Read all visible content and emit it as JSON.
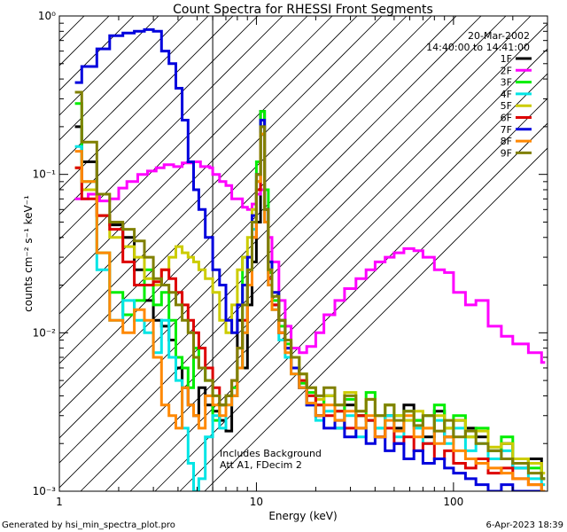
{
  "chart_data": {
    "type": "line",
    "title": "Count Spectra for RHESSI Front Segments",
    "xlabel": "Energy (keV)",
    "ylabel": "counts cm⁻² s⁻¹ keV⁻¹",
    "xscale": "log",
    "yscale": "log",
    "xlim": [
      1,
      300
    ],
    "ylim": [
      0.001,
      1.0
    ],
    "x_ticks": [
      {
        "value": 1,
        "label": "1"
      },
      {
        "value": 10,
        "label": "10"
      },
      {
        "value": 100,
        "label": "100"
      }
    ],
    "y_ticks": [
      {
        "value": 0.001,
        "label": "10⁻³"
      },
      {
        "value": 0.01,
        "label": "10⁻²"
      },
      {
        "value": 0.1,
        "label": "10⁻¹"
      },
      {
        "value": 1,
        "label": "10⁰"
      }
    ],
    "date_label": "20-Mar-2002",
    "time_range": "14:40:00 to 14:41:00",
    "annotation_lines": [
      "Includes Background",
      "Att A1, FDecim 2"
    ],
    "hatched_region_upper_kev": 6,
    "grid": false,
    "legend_position": "top-right",
    "series": [
      {
        "name": "1F",
        "color": "#000000",
        "x": [
          1.2,
          1.3,
          1.55,
          1.8,
          2.1,
          2.4,
          2.7,
          3.0,
          3.3,
          3.6,
          3.9,
          4.2,
          4.5,
          4.8,
          5.1,
          5.5,
          6.0,
          6.5,
          7.0,
          7.5,
          8.0,
          8.5,
          9.0,
          9.5,
          10.0,
          10.5,
          11.0,
          11.5,
          12.0,
          13.0,
          14.0,
          15.0,
          16.5,
          18.0,
          20.0,
          22.0,
          25.0,
          28.0,
          32.0,
          36.0,
          40.0,
          45.0,
          50.0,
          56.0,
          63.0,
          70.0,
          80.0,
          90.0,
          100.0,
          115.0,
          130.0,
          150.0,
          175.0,
          200.0,
          240.0,
          280.0
        ],
        "values": [
          0.2,
          0.12,
          0.055,
          0.048,
          0.04,
          0.025,
          0.016,
          0.012,
          0.011,
          0.009,
          0.006,
          0.0045,
          0.0035,
          0.003,
          0.0045,
          0.0035,
          0.0032,
          0.0028,
          0.0024,
          0.004,
          0.012,
          0.006,
          0.015,
          0.028,
          0.05,
          0.25,
          0.05,
          0.02,
          0.015,
          0.01,
          0.008,
          0.006,
          0.0045,
          0.0035,
          0.003,
          0.004,
          0.0025,
          0.0035,
          0.003,
          0.0028,
          0.0022,
          0.003,
          0.0025,
          0.0035,
          0.0028,
          0.0022,
          0.0032,
          0.0022,
          0.0028,
          0.0025,
          0.0022,
          0.0018,
          0.002,
          0.0014,
          0.0016,
          0.0012
        ]
      },
      {
        "name": "2F",
        "color": "#ff00ff",
        "x": [
          1.2,
          1.4,
          1.6,
          1.8,
          2.0,
          2.2,
          2.5,
          2.8,
          3.1,
          3.4,
          3.8,
          4.2,
          4.7,
          5.2,
          5.8,
          6.0,
          6.5,
          7.0,
          7.5,
          8.0,
          8.5,
          9.0,
          9.5,
          10.0,
          10.5,
          11.0,
          11.5,
          12.0,
          13.0,
          14.0,
          15.0,
          16.5,
          18.0,
          20.0,
          22.0,
          25.0,
          28.0,
          32.0,
          36.0,
          40.0,
          45.0,
          50.0,
          56.0,
          63.0,
          70.0,
          80.0,
          90.0,
          100.0,
          115.0,
          130.0,
          150.0,
          175.0,
          200.0,
          240.0,
          280.0
        ],
        "values": [
          0.07,
          0.075,
          0.068,
          0.07,
          0.082,
          0.09,
          0.1,
          0.105,
          0.11,
          0.115,
          0.112,
          0.118,
          0.12,
          0.112,
          0.11,
          0.1,
          0.09,
          0.085,
          0.07,
          0.07,
          0.062,
          0.06,
          0.065,
          0.075,
          0.08,
          0.06,
          0.04,
          0.028,
          0.016,
          0.011,
          0.008,
          0.0075,
          0.0082,
          0.01,
          0.013,
          0.016,
          0.019,
          0.022,
          0.025,
          0.028,
          0.03,
          0.032,
          0.034,
          0.033,
          0.03,
          0.025,
          0.024,
          0.018,
          0.015,
          0.016,
          0.011,
          0.0095,
          0.0085,
          0.0075,
          0.0065
        ]
      },
      {
        "name": "3F",
        "color": "#00ee00",
        "x": [
          1.2,
          1.3,
          1.55,
          1.8,
          2.1,
          2.4,
          2.7,
          3.0,
          3.3,
          3.6,
          3.9,
          4.2,
          4.5,
          4.8,
          5.1,
          5.5,
          6.0,
          6.5,
          7.0,
          7.5,
          8.0,
          8.5,
          9.0,
          9.5,
          10.0,
          10.5,
          11.0,
          11.5,
          12.0,
          13.0,
          14.0,
          15.0,
          16.5,
          18.0,
          20.0,
          22.0,
          25.0,
          28.0,
          32.0,
          36.0,
          40.0,
          45.0,
          50.0,
          56.0,
          63.0,
          70.0,
          80.0,
          90.0,
          100.0,
          115.0,
          130.0,
          150.0,
          175.0,
          200.0,
          240.0,
          280.0
        ],
        "values": [
          0.28,
          0.09,
          0.032,
          0.018,
          0.013,
          0.016,
          0.025,
          0.015,
          0.018,
          0.012,
          0.007,
          0.006,
          0.0045,
          0.008,
          0.006,
          0.005,
          0.0028,
          0.0035,
          0.004,
          0.0045,
          0.006,
          0.03,
          0.02,
          0.05,
          0.12,
          0.25,
          0.08,
          0.024,
          0.016,
          0.011,
          0.0085,
          0.006,
          0.0048,
          0.0042,
          0.0035,
          0.004,
          0.0032,
          0.0038,
          0.003,
          0.0042,
          0.0025,
          0.0035,
          0.003,
          0.0032,
          0.0028,
          0.003,
          0.0035,
          0.0025,
          0.003,
          0.0022,
          0.0025,
          0.0018,
          0.0022,
          0.0016,
          0.0014,
          0.0012
        ]
      },
      {
        "name": "4F",
        "color": "#00e5e5",
        "x": [
          1.2,
          1.3,
          1.55,
          1.8,
          2.1,
          2.4,
          2.7,
          3.0,
          3.3,
          3.6,
          3.9,
          4.2,
          4.5,
          4.8,
          5.1,
          5.5,
          6.0,
          6.5,
          7.0,
          7.5,
          8.0,
          8.5,
          9.0,
          9.5,
          10.0,
          10.5,
          11.0,
          11.5,
          12.0,
          13.0,
          14.0,
          15.0,
          16.5,
          18.0,
          20.0,
          22.0,
          25.0,
          28.0,
          32.0,
          36.0,
          40.0,
          45.0,
          50.0,
          56.0,
          63.0,
          70.0,
          80.0,
          90.0,
          100.0,
          115.0,
          130.0,
          150.0,
          175.0,
          200.0,
          240.0,
          280.0
        ],
        "values": [
          0.15,
          0.08,
          0.025,
          0.012,
          0.016,
          0.012,
          0.01,
          0.0075,
          0.012,
          0.007,
          0.005,
          0.0025,
          0.0015,
          0.001,
          0.0012,
          0.0022,
          0.003,
          0.0025,
          0.0035,
          0.004,
          0.006,
          0.01,
          0.02,
          0.045,
          0.1,
          0.2,
          0.05,
          0.02,
          0.014,
          0.009,
          0.007,
          0.0055,
          0.0045,
          0.0035,
          0.0028,
          0.0032,
          0.0025,
          0.003,
          0.0022,
          0.0028,
          0.0025,
          0.003,
          0.0022,
          0.0028,
          0.0025,
          0.002,
          0.0028,
          0.002,
          0.0025,
          0.0018,
          0.002,
          0.0016,
          0.0018,
          0.0014,
          0.0012,
          0.0011
        ]
      },
      {
        "name": "5F",
        "color": "#cccc00",
        "x": [
          1.2,
          1.3,
          1.55,
          1.8,
          2.1,
          2.4,
          2.7,
          3.0,
          3.3,
          3.6,
          3.9,
          4.2,
          4.5,
          4.8,
          5.1,
          5.5,
          6.0,
          6.5,
          7.0,
          7.5,
          8.0,
          8.5,
          9.0,
          9.5,
          10.0,
          10.5,
          11.0,
          11.5,
          12.0,
          13.0,
          14.0,
          15.0,
          16.5,
          18.0,
          20.0,
          22.0,
          25.0,
          28.0,
          32.0,
          36.0,
          40.0,
          45.0,
          50.0,
          56.0,
          63.0,
          70.0,
          80.0,
          90.0,
          100.0,
          115.0,
          130.0,
          150.0,
          175.0,
          200.0,
          240.0,
          280.0
        ],
        "values": [
          0.11,
          0.08,
          0.055,
          0.04,
          0.035,
          0.03,
          0.022,
          0.02,
          0.025,
          0.03,
          0.035,
          0.032,
          0.03,
          0.028,
          0.025,
          0.022,
          0.018,
          0.012,
          0.01,
          0.015,
          0.025,
          0.03,
          0.04,
          0.06,
          0.09,
          0.18,
          0.06,
          0.025,
          0.018,
          0.012,
          0.009,
          0.007,
          0.0055,
          0.0045,
          0.0038,
          0.004,
          0.0035,
          0.0042,
          0.0032,
          0.0038,
          0.003,
          0.0035,
          0.003,
          0.0028,
          0.0032,
          0.0025,
          0.003,
          0.0025,
          0.0028,
          0.0022,
          0.0024,
          0.0019,
          0.002,
          0.0016,
          0.0015,
          0.0013
        ]
      },
      {
        "name": "6F",
        "color": "#dd0000",
        "x": [
          1.2,
          1.3,
          1.55,
          1.8,
          2.1,
          2.4,
          2.7,
          3.0,
          3.3,
          3.6,
          3.9,
          4.2,
          4.5,
          4.8,
          5.1,
          5.5,
          6.0,
          6.5,
          7.0,
          7.5,
          8.0,
          8.5,
          9.0,
          9.5,
          10.0,
          10.5,
          11.0,
          11.5,
          12.0,
          13.0,
          14.0,
          15.0,
          16.5,
          18.0,
          20.0,
          22.0,
          25.0,
          28.0,
          32.0,
          36.0,
          40.0,
          45.0,
          50.0,
          56.0,
          63.0,
          70.0,
          80.0,
          90.0,
          100.0,
          115.0,
          130.0,
          150.0,
          175.0,
          200.0,
          240.0,
          280.0
        ],
        "values": [
          0.11,
          0.07,
          0.055,
          0.045,
          0.028,
          0.02,
          0.02,
          0.021,
          0.025,
          0.022,
          0.018,
          0.015,
          0.012,
          0.01,
          0.008,
          0.006,
          0.0045,
          0.0035,
          0.004,
          0.005,
          0.008,
          0.012,
          0.02,
          0.04,
          0.08,
          0.2,
          0.06,
          0.022,
          0.015,
          0.01,
          0.008,
          0.006,
          0.005,
          0.004,
          0.0035,
          0.003,
          0.0032,
          0.0025,
          0.003,
          0.0028,
          0.0022,
          0.0025,
          0.002,
          0.0022,
          0.0018,
          0.002,
          0.0016,
          0.0018,
          0.0015,
          0.0014,
          0.0016,
          0.0013,
          0.0014,
          0.0012,
          0.0011,
          0.001
        ]
      },
      {
        "name": "7F",
        "color": "#0000dd",
        "x": [
          1.2,
          1.3,
          1.55,
          1.8,
          2.1,
          2.4,
          2.7,
          3.0,
          3.3,
          3.6,
          3.9,
          4.2,
          4.5,
          4.8,
          5.1,
          5.5,
          6.0,
          6.5,
          7.0,
          7.5,
          8.0,
          8.5,
          9.0,
          9.5,
          10.0,
          10.5,
          11.0,
          11.5,
          12.0,
          13.0,
          14.0,
          15.0,
          16.5,
          18.0,
          20.0,
          22.0,
          25.0,
          28.0,
          32.0,
          36.0,
          40.0,
          45.0,
          50.0,
          56.0,
          63.0,
          70.0,
          80.0,
          90.0,
          100.0,
          115.0,
          130.0,
          150.0,
          175.0,
          200.0,
          240.0,
          280.0
        ],
        "values": [
          0.38,
          0.48,
          0.62,
          0.75,
          0.78,
          0.8,
          0.82,
          0.8,
          0.6,
          0.5,
          0.35,
          0.22,
          0.12,
          0.08,
          0.06,
          0.04,
          0.025,
          0.02,
          0.012,
          0.01,
          0.015,
          0.02,
          0.03,
          0.055,
          0.1,
          0.22,
          0.06,
          0.028,
          0.018,
          0.012,
          0.008,
          0.006,
          0.0045,
          0.0035,
          0.003,
          0.0025,
          0.0028,
          0.0022,
          0.0025,
          0.002,
          0.0022,
          0.0018,
          0.002,
          0.0016,
          0.0018,
          0.0015,
          0.0016,
          0.0014,
          0.0013,
          0.0012,
          0.0011,
          0.001,
          0.0011,
          0.001,
          0.001,
          0.001
        ]
      },
      {
        "name": "8F",
        "color": "#ff8800",
        "x": [
          1.2,
          1.3,
          1.55,
          1.8,
          2.1,
          2.4,
          2.7,
          3.0,
          3.3,
          3.6,
          3.9,
          4.2,
          4.5,
          4.8,
          5.1,
          5.5,
          6.0,
          6.5,
          7.0,
          7.5,
          8.0,
          8.5,
          9.0,
          9.5,
          10.0,
          10.5,
          11.0,
          11.5,
          12.0,
          13.0,
          14.0,
          15.0,
          16.5,
          18.0,
          20.0,
          22.0,
          25.0,
          28.0,
          32.0,
          36.0,
          40.0,
          45.0,
          50.0,
          56.0,
          63.0,
          70.0,
          80.0,
          90.0,
          100.0,
          115.0,
          130.0,
          150.0,
          175.0,
          200.0,
          240.0,
          280.0
        ],
        "values": [
          0.14,
          0.09,
          0.032,
          0.012,
          0.01,
          0.014,
          0.012,
          0.007,
          0.0035,
          0.003,
          0.0025,
          0.0045,
          0.0035,
          0.003,
          0.0025,
          0.004,
          0.0035,
          0.003,
          0.0035,
          0.004,
          0.006,
          0.01,
          0.02,
          0.04,
          0.09,
          0.18,
          0.05,
          0.02,
          0.014,
          0.01,
          0.0075,
          0.0055,
          0.0045,
          0.0036,
          0.003,
          0.0035,
          0.0028,
          0.0032,
          0.0025,
          0.003,
          0.0022,
          0.0028,
          0.0024,
          0.003,
          0.0022,
          0.0025,
          0.002,
          0.0022,
          0.0018,
          0.0016,
          0.0015,
          0.0014,
          0.0013,
          0.0012,
          0.0011,
          0.001
        ]
      },
      {
        "name": "9F",
        "color": "#808000",
        "x": [
          1.2,
          1.3,
          1.55,
          1.8,
          2.1,
          2.4,
          2.7,
          3.0,
          3.3,
          3.6,
          3.9,
          4.2,
          4.5,
          4.8,
          5.1,
          5.5,
          6.0,
          6.5,
          7.0,
          7.5,
          8.0,
          8.5,
          9.0,
          9.5,
          10.0,
          10.5,
          11.0,
          11.5,
          12.0,
          13.0,
          14.0,
          15.0,
          16.5,
          18.0,
          20.0,
          22.0,
          25.0,
          28.0,
          32.0,
          36.0,
          40.0,
          45.0,
          50.0,
          56.0,
          63.0,
          70.0,
          80.0,
          90.0,
          100.0,
          115.0,
          130.0,
          150.0,
          175.0,
          200.0,
          240.0,
          280.0
        ],
        "values": [
          0.33,
          0.16,
          0.075,
          0.05,
          0.045,
          0.038,
          0.03,
          0.022,
          0.02,
          0.018,
          0.015,
          0.012,
          0.01,
          0.007,
          0.006,
          0.005,
          0.004,
          0.0035,
          0.004,
          0.005,
          0.008,
          0.015,
          0.025,
          0.05,
          0.1,
          0.2,
          0.06,
          0.025,
          0.017,
          0.012,
          0.009,
          0.007,
          0.0055,
          0.0045,
          0.004,
          0.0045,
          0.0035,
          0.004,
          0.0032,
          0.0038,
          0.003,
          0.0035,
          0.0028,
          0.0032,
          0.0026,
          0.003,
          0.0024,
          0.0028,
          0.0022,
          0.0024,
          0.002,
          0.0018,
          0.0016,
          0.0015,
          0.0013,
          0.0012
        ]
      }
    ]
  },
  "footer": {
    "generated_by": "Generated by hsi_min_spectra_plot.pro",
    "date": "6-Apr-2023 18:39"
  }
}
